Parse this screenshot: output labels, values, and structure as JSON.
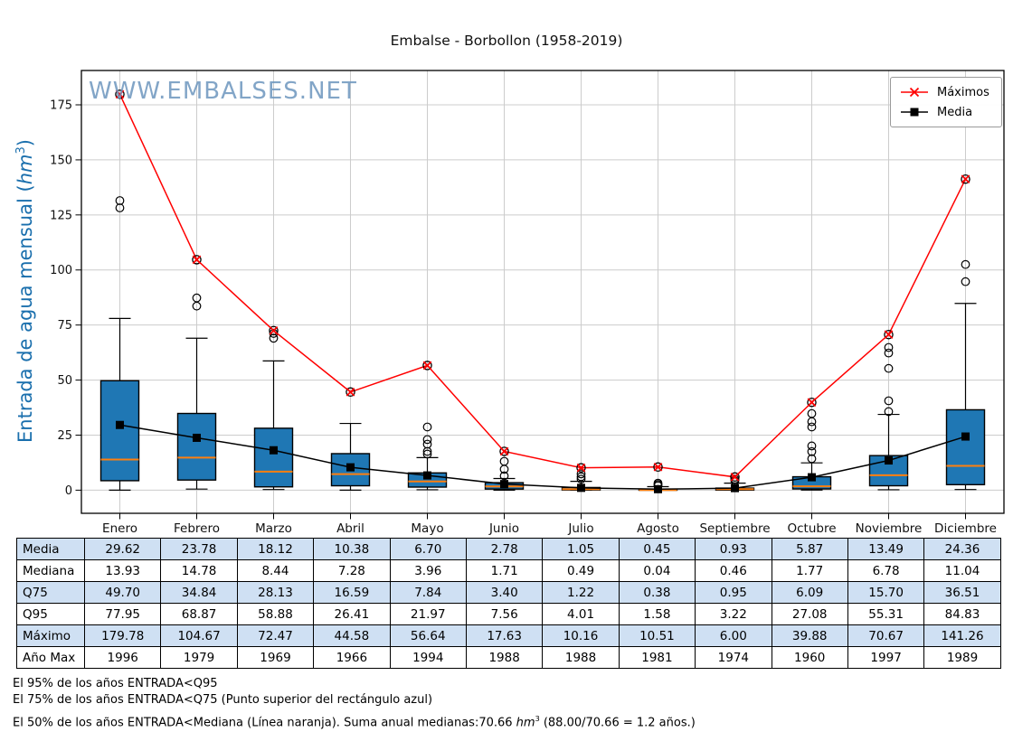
{
  "title": "Embalse - Borbollon (1958-2019)",
  "watermark": "WWW.EMBALSES.NET",
  "y_axis": {
    "label_pre": "Entrada de agua mensual (",
    "label_unit": "hm",
    "label_sup": "3",
    "label_post": ")",
    "color": "#1a6fad"
  },
  "legend": {
    "items": [
      {
        "label": "Máximos",
        "color": "#ff0000",
        "marker": "x"
      },
      {
        "label": "Media",
        "color": "#000000",
        "marker": "square"
      }
    ]
  },
  "chart_data": {
    "type": "boxplot",
    "title": "Embalse - Borbollon (1958-2019)",
    "ylabel": "Entrada de agua mensual (hm³)",
    "categories": [
      "Enero",
      "Febrero",
      "Marzo",
      "Abril",
      "Mayo",
      "Junio",
      "Julio",
      "Agosto",
      "Septiembre",
      "Octubre",
      "Noviembre",
      "Diciembre"
    ],
    "ylim": [
      -10,
      190
    ],
    "yticks": [
      0,
      25,
      50,
      75,
      100,
      125,
      150,
      175
    ],
    "grid": true,
    "legend_position": "upper right",
    "box_fill": "#1f77b4",
    "median_color": "#ff7f0e",
    "boxes": [
      {
        "q1": 4.3,
        "median": 13.93,
        "q3": 49.7,
        "whisker_low": 0.0,
        "whisker_high": 78.0,
        "outliers": [
          128.2,
          131.5
        ]
      },
      {
        "q1": 4.6,
        "median": 14.78,
        "q3": 34.84,
        "whisker_low": 0.5,
        "whisker_high": 69.0,
        "outliers": [
          83.6,
          87.3
        ]
      },
      {
        "q1": 1.5,
        "median": 8.44,
        "q3": 28.13,
        "whisker_low": 0.3,
        "whisker_high": 58.7,
        "outliers": [
          69.0,
          71.2
        ]
      },
      {
        "q1": 2.0,
        "median": 7.28,
        "q3": 16.59,
        "whisker_low": 0.0,
        "whisker_high": 30.3,
        "outliers": []
      },
      {
        "q1": 1.4,
        "median": 3.96,
        "q3": 7.84,
        "whisker_low": 0.2,
        "whisker_high": 14.8,
        "outliers": [
          16.4,
          17.6,
          20.9,
          23.0,
          28.7
        ]
      },
      {
        "q1": 0.5,
        "median": 1.71,
        "q3": 3.4,
        "whisker_low": 0.0,
        "whisker_high": 5.3,
        "outliers": [
          6.5,
          9.5,
          13.1
        ]
      },
      {
        "q1": 0.1,
        "median": 0.49,
        "q3": 1.22,
        "whisker_low": 0.0,
        "whisker_high": 4.0,
        "outliers": [
          5.0,
          6.1,
          7.4
        ]
      },
      {
        "q1": 0.01,
        "median": 0.04,
        "q3": 0.38,
        "whisker_low": 0.0,
        "whisker_high": 1.6,
        "outliers": [
          2.0,
          2.6,
          3.2
        ]
      },
      {
        "q1": 0.05,
        "median": 0.46,
        "q3": 0.95,
        "whisker_low": 0.0,
        "whisker_high": 3.2,
        "outliers": [
          4.2,
          5.0
        ]
      },
      {
        "q1": 0.55,
        "median": 1.77,
        "q3": 6.09,
        "whisker_low": 0.05,
        "whisker_high": 12.4,
        "outliers": [
          14.3,
          17.5,
          20.1,
          28.7,
          31.1,
          34.8
        ]
      },
      {
        "q1": 2.0,
        "median": 6.78,
        "q3": 15.7,
        "whisker_low": 0.2,
        "whisker_high": 34.4,
        "outliers": [
          35.7,
          40.6,
          55.3,
          62.3,
          64.8
        ]
      },
      {
        "q1": 2.5,
        "median": 11.04,
        "q3": 36.51,
        "whisker_low": 0.3,
        "whisker_high": 84.8,
        "outliers": [
          94.7,
          102.5
        ]
      }
    ],
    "series": [
      {
        "name": "Máximos",
        "color": "#ff0000",
        "marker": "x",
        "values": [
          179.78,
          104.67,
          72.47,
          44.58,
          56.64,
          17.63,
          10.16,
          10.51,
          6.0,
          39.88,
          70.67,
          141.26
        ]
      },
      {
        "name": "Media",
        "color": "#000000",
        "marker": "square",
        "values": [
          29.62,
          23.78,
          18.12,
          10.38,
          6.7,
          2.78,
          1.05,
          0.45,
          0.93,
          5.87,
          13.49,
          24.36
        ]
      }
    ]
  },
  "table": {
    "stripe_color": "#cfe0f3",
    "rows": [
      {
        "label": "Media",
        "values": [
          "29.62",
          "23.78",
          "18.12",
          "10.38",
          "6.70",
          "2.78",
          "1.05",
          "0.45",
          "0.93",
          "5.87",
          "13.49",
          "24.36"
        ]
      },
      {
        "label": "Mediana",
        "values": [
          "13.93",
          "14.78",
          "8.44",
          "7.28",
          "3.96",
          "1.71",
          "0.49",
          "0.04",
          "0.46",
          "1.77",
          "6.78",
          "11.04"
        ]
      },
      {
        "label": "Q75",
        "values": [
          "49.70",
          "34.84",
          "28.13",
          "16.59",
          "7.84",
          "3.40",
          "1.22",
          "0.38",
          "0.95",
          "6.09",
          "15.70",
          "36.51"
        ]
      },
      {
        "label": "Q95",
        "values": [
          "77.95",
          "68.87",
          "58.88",
          "26.41",
          "21.97",
          "7.56",
          "4.01",
          "1.58",
          "3.22",
          "27.08",
          "55.31",
          "84.83"
        ]
      },
      {
        "label": "Máximo",
        "values": [
          "179.78",
          "104.67",
          "72.47",
          "44.58",
          "56.64",
          "17.63",
          "10.16",
          "10.51",
          "6.00",
          "39.88",
          "70.67",
          "141.26"
        ]
      },
      {
        "label": "Año Max",
        "values": [
          "1996",
          "1979",
          "1969",
          "1966",
          "1994",
          "1988",
          "1988",
          "1981",
          "1974",
          "1960",
          "1997",
          "1989"
        ]
      }
    ]
  },
  "footer": {
    "line1": "El 95% de los años ENTRADA<Q95",
    "line2": "El 75% de los años ENTRADA<Q75 (Punto superior del rectángulo azul)",
    "line3_pre": "El 50% de los años ENTRADA<Mediana (Línea naranja). Suma anual medianas:70.66 ",
    "line3_unit": "hm",
    "line3_sup": "3",
    "line3_post": " (88.00/70.66 = 1.2 años.)"
  }
}
